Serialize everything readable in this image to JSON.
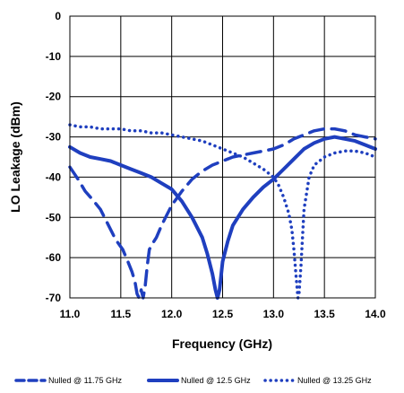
{
  "chart_data": {
    "type": "line",
    "xlabel": "Frequency (GHz)",
    "ylabel": "LO Leakage  (dBm)",
    "xlim": [
      11.0,
      14.0
    ],
    "ylim": [
      -70,
      0
    ],
    "xticks": [
      "11.0",
      "11.5",
      "12.0",
      "12.5",
      "13.0",
      "13.5",
      "14.0"
    ],
    "yticks": [
      "0",
      "-10",
      "-20",
      "-30",
      "-40",
      "-50",
      "-60",
      "-70"
    ],
    "grid": true,
    "legend_position": "bottom",
    "line_color": "#1f3fbf",
    "series": [
      {
        "name": "Nulled @ 11.75 GHz",
        "style": "dashed",
        "x": [
          11.0,
          11.08,
          11.15,
          11.22,
          11.3,
          11.38,
          11.45,
          11.52,
          11.57,
          11.61,
          11.64,
          11.66,
          11.68,
          11.7,
          11.72,
          11.74,
          11.76,
          11.78,
          11.8,
          11.85,
          11.9,
          11.95,
          12.0,
          12.1,
          12.2,
          12.3,
          12.4,
          12.5,
          12.6,
          12.7,
          12.8,
          12.9,
          13.0,
          13.1,
          13.2,
          13.3,
          13.4,
          13.5,
          13.6,
          13.7,
          13.8,
          13.9,
          14.0
        ],
        "y": [
          -37.5,
          -40.5,
          -43.5,
          -45.5,
          -48,
          -52,
          -55.5,
          -58,
          -61,
          -63.5,
          -66,
          -69,
          -70,
          -68,
          -70,
          -67,
          -62,
          -58,
          -57,
          -55,
          -52,
          -49.5,
          -47,
          -43.5,
          -40.5,
          -38.5,
          -37,
          -36,
          -35,
          -34.5,
          -34,
          -33.5,
          -33,
          -32,
          -30.5,
          -29.5,
          -28.5,
          -28,
          -28,
          -28.5,
          -29.5,
          -30,
          -30.5
        ]
      },
      {
        "name": "Nulled @ 12.5 GHz",
        "style": "solid",
        "x": [
          11.0,
          11.1,
          11.2,
          11.3,
          11.4,
          11.5,
          11.6,
          11.7,
          11.8,
          11.9,
          12.0,
          12.1,
          12.2,
          12.3,
          12.35,
          12.4,
          12.43,
          12.45,
          12.47,
          12.5,
          12.55,
          12.6,
          12.7,
          12.8,
          12.9,
          13.0,
          13.1,
          13.2,
          13.3,
          13.4,
          13.5,
          13.6,
          13.7,
          13.8,
          13.9,
          14.0
        ],
        "y": [
          -32.5,
          -34,
          -35,
          -35.5,
          -36,
          -37,
          -38,
          -39,
          -40,
          -41.5,
          -43,
          -46,
          -50,
          -55,
          -59,
          -64,
          -68,
          -70,
          -68,
          -61,
          -56,
          -52,
          -48,
          -45,
          -42.5,
          -40.5,
          -38,
          -35.5,
          -33,
          -31.5,
          -30.5,
          -30,
          -30.5,
          -31,
          -32,
          -33
        ]
      },
      {
        "name": "Nulled @ 13.25 GHz",
        "style": "dotted",
        "x": [
          11.0,
          11.1,
          11.2,
          11.3,
          11.4,
          11.5,
          11.6,
          11.7,
          11.8,
          11.9,
          12.0,
          12.1,
          12.2,
          12.3,
          12.4,
          12.5,
          12.6,
          12.7,
          12.8,
          12.9,
          13.0,
          13.05,
          13.1,
          13.15,
          13.18,
          13.2,
          13.22,
          13.24,
          13.25,
          13.27,
          13.3,
          13.35,
          13.4,
          13.5,
          13.6,
          13.7,
          13.8,
          13.9,
          14.0
        ],
        "y": [
          -27,
          -27.5,
          -27.5,
          -28,
          -28,
          -28,
          -28.5,
          -28.5,
          -29,
          -29,
          -29.5,
          -30,
          -30.5,
          -31,
          -32,
          -33,
          -34,
          -35,
          -36.5,
          -38,
          -40,
          -42,
          -45,
          -49,
          -53,
          -58,
          -64,
          -70,
          -69,
          -62,
          -48,
          -40,
          -37,
          -35,
          -34,
          -33.5,
          -33.5,
          -34,
          -35
        ]
      }
    ]
  }
}
